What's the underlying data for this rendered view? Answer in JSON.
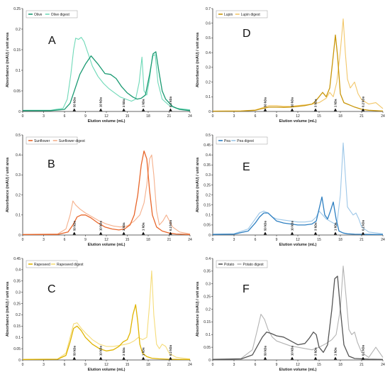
{
  "chart_data": [
    {
      "type": "line",
      "letter": "A",
      "xlabel": "Elution volume (mL)",
      "ylabel": "Absorbance (mAU) / unit area",
      "xlim": [
        0,
        24
      ],
      "ylim": [
        0,
        0.25
      ],
      "x_ticks": [
        "0",
        "3",
        "6",
        "9",
        "12",
        "15",
        "18",
        "21",
        "24"
      ],
      "y_ticks": [
        "0",
        "0.05",
        "0.1",
        "0.15",
        "0.2",
        "0.25"
      ],
      "legend": "top-left",
      "markers": [
        {
          "label": "50 kDa",
          "x": 7.4
        },
        {
          "label": "10 kDa",
          "x": 11.2
        },
        {
          "label": "3 kDa",
          "x": 14.5
        },
        {
          "label": "1 kDa",
          "x": 17.3
        },
        {
          "label": "0.2 kDa",
          "x": 21.2
        }
      ],
      "series": [
        {
          "name": "Olive",
          "color": "#1a9a72",
          "width": 1.3,
          "x": [
            0,
            4,
            6,
            6.8,
            7.5,
            8.2,
            9,
            9.8,
            10.8,
            11.8,
            12.6,
            13.4,
            14.2,
            15,
            15.8,
            16.4,
            17,
            17.6,
            18.2,
            18.7,
            19.1,
            19.5,
            20,
            20.5,
            21.5,
            22.5,
            24
          ],
          "y": [
            0.002,
            0.002,
            0.005,
            0.02,
            0.055,
            0.09,
            0.115,
            0.135,
            0.115,
            0.092,
            0.09,
            0.08,
            0.06,
            0.045,
            0.035,
            0.03,
            0.032,
            0.04,
            0.09,
            0.14,
            0.145,
            0.1,
            0.05,
            0.03,
            0.012,
            0.005,
            0.002
          ]
        },
        {
          "name": "Olive digest",
          "color": "#6fd9b8",
          "width": 1.1,
          "x": [
            0,
            4,
            5.8,
            6.4,
            6.9,
            7.3,
            7.6,
            8,
            8.4,
            8.8,
            9.4,
            10,
            10.8,
            11.6,
            12.4,
            13.2,
            14,
            14.8,
            15.6,
            16.2,
            16.7,
            17.1,
            17.4,
            17.8,
            18.2,
            18.6,
            19,
            19.4,
            20,
            21,
            22,
            24
          ],
          "y": [
            0.003,
            0.003,
            0.008,
            0.03,
            0.09,
            0.15,
            0.178,
            0.175,
            0.18,
            0.17,
            0.14,
            0.11,
            0.085,
            0.068,
            0.055,
            0.045,
            0.035,
            0.03,
            0.025,
            0.03,
            0.07,
            0.132,
            0.05,
            0.04,
            0.08,
            0.135,
            0.138,
            0.07,
            0.03,
            0.015,
            0.008,
            0.004
          ]
        }
      ]
    },
    {
      "type": "line",
      "letter": "D",
      "xlabel": "Elution volume (mL)",
      "ylabel": "Absorbance (mAU) / unit area",
      "xlim": [
        0,
        24
      ],
      "ylim": [
        0,
        0.7
      ],
      "x_ticks": [
        "0",
        "3",
        "6",
        "9",
        "12",
        "15",
        "18",
        "21",
        "24"
      ],
      "y_ticks": [
        "0",
        "0.1",
        "0.2",
        "0.3",
        "0.4",
        "0.5",
        "0.6",
        "0.7"
      ],
      "legend": "top-left",
      "markers": [
        {
          "label": "50 kDa",
          "x": 7.4
        },
        {
          "label": "10 kDa",
          "x": 11.2
        },
        {
          "label": "3 kDa",
          "x": 14.5
        },
        {
          "label": "1 kDa",
          "x": 17.3
        },
        {
          "label": "0.2 kDa",
          "x": 21.2
        }
      ],
      "series": [
        {
          "name": "Lupin",
          "color": "#c9960a",
          "width": 1.3,
          "x": [
            0,
            4,
            6,
            7,
            8,
            9,
            10,
            11,
            12,
            13,
            14,
            14.5,
            15,
            15.5,
            16,
            16.5,
            17,
            17.3,
            17.6,
            18,
            18.5,
            19,
            19.5,
            20,
            21,
            22,
            24
          ],
          "y": [
            0.002,
            0.003,
            0.008,
            0.02,
            0.03,
            0.03,
            0.028,
            0.03,
            0.035,
            0.04,
            0.05,
            0.07,
            0.1,
            0.13,
            0.1,
            0.16,
            0.38,
            0.52,
            0.38,
            0.12,
            0.06,
            0.05,
            0.04,
            0.03,
            0.015,
            0.008,
            0.003
          ]
        },
        {
          "name": "Lupin digest",
          "color": "#f2c76a",
          "width": 1.1,
          "x": [
            0,
            4,
            6,
            7,
            8,
            9,
            10,
            11,
            12,
            13,
            14,
            15,
            16,
            16.5,
            17,
            17.5,
            18,
            18.4,
            18.7,
            19,
            19.4,
            20,
            20.5,
            21,
            22,
            23,
            24
          ],
          "y": [
            0.003,
            0.004,
            0.01,
            0.025,
            0.04,
            0.04,
            0.035,
            0.035,
            0.04,
            0.045,
            0.05,
            0.06,
            0.09,
            0.13,
            0.1,
            0.2,
            0.41,
            0.63,
            0.4,
            0.22,
            0.16,
            0.2,
            0.12,
            0.08,
            0.05,
            0.06,
            0.02
          ]
        }
      ]
    },
    {
      "type": "line",
      "letter": "B",
      "xlabel": "Elution volume (mL)",
      "ylabel": "Absorbance (mAU) / unit area",
      "xlim": [
        0,
        24
      ],
      "ylim": [
        0,
        0.5
      ],
      "x_ticks": [
        "0",
        "3",
        "6",
        "9",
        "12",
        "15",
        "18",
        "21",
        "24"
      ],
      "y_ticks": [
        "0",
        "0.1",
        "0.2",
        "0.3",
        "0.4",
        "0.5"
      ],
      "legend": "top-left",
      "markers": [
        {
          "label": "50 kDa",
          "x": 7.4
        },
        {
          "label": "10 kDa",
          "x": 11.2
        },
        {
          "label": "3 kDa",
          "x": 14.5
        },
        {
          "label": "1 kDa",
          "x": 17.3
        },
        {
          "label": "0.2 kDa",
          "x": 21.2
        }
      ],
      "series": [
        {
          "name": "Sunflower",
          "color": "#e8662a",
          "width": 1.3,
          "x": [
            0,
            5,
            6.5,
            7.2,
            7.8,
            8.4,
            9,
            9.8,
            10.8,
            11.8,
            12.8,
            13.8,
            14.6,
            15.4,
            16,
            16.5,
            17,
            17.4,
            17.8,
            18.2,
            18.6,
            19.2,
            20,
            21,
            22,
            24
          ],
          "y": [
            0.002,
            0.003,
            0.015,
            0.05,
            0.09,
            0.1,
            0.1,
            0.085,
            0.06,
            0.04,
            0.03,
            0.025,
            0.03,
            0.05,
            0.1,
            0.2,
            0.35,
            0.42,
            0.38,
            0.22,
            0.1,
            0.04,
            0.02,
            0.01,
            0.005,
            0.002
          ]
        },
        {
          "name": "Sunflower digest",
          "color": "#f5b08c",
          "width": 1.1,
          "x": [
            0,
            5,
            6.2,
            6.8,
            7.2,
            7.6,
            8.2,
            9,
            10,
            11,
            12,
            13,
            14,
            15,
            16,
            16.8,
            17.4,
            17.8,
            18.2,
            18.5,
            18.8,
            19.2,
            19.6,
            20.1,
            20.6,
            21.5,
            22.5,
            24
          ],
          "y": [
            0.003,
            0.005,
            0.03,
            0.1,
            0.17,
            0.15,
            0.13,
            0.11,
            0.09,
            0.07,
            0.055,
            0.045,
            0.04,
            0.045,
            0.07,
            0.1,
            0.16,
            0.25,
            0.38,
            0.4,
            0.3,
            0.12,
            0.05,
            0.07,
            0.1,
            0.04,
            0.015,
            0.005
          ]
        }
      ]
    },
    {
      "type": "line",
      "letter": "E",
      "xlabel": "Elution volume (mL)",
      "ylabel": "Absorbance (mAU) / unit area",
      "xlim": [
        0,
        24
      ],
      "ylim": [
        0,
        0.5
      ],
      "x_ticks": [
        "0",
        "3",
        "6",
        "9",
        "12",
        "15",
        "18",
        "21",
        "24"
      ],
      "y_ticks": [
        "0",
        "0.05",
        "0.1",
        "0.15",
        "0.2",
        "0.25",
        "0.3",
        "0.35",
        "0.4",
        "0.45",
        "0.5"
      ],
      "legend": "top-left",
      "markers": [
        {
          "label": "50 kDa",
          "x": 7.4
        },
        {
          "label": "10 kDa",
          "x": 11.2
        },
        {
          "label": "3 kDa",
          "x": 14.5
        },
        {
          "label": "1 kDa",
          "x": 17.3
        },
        {
          "label": "0.2 kDa",
          "x": 21.2
        }
      ],
      "series": [
        {
          "name": "Pea",
          "color": "#2d7fc1",
          "width": 1.3,
          "x": [
            0,
            3,
            5,
            6,
            6.6,
            7.2,
            7.8,
            8.4,
            9,
            10,
            11,
            12,
            13,
            14,
            14.6,
            15,
            15.4,
            15.8,
            16.2,
            16.6,
            17,
            17.4,
            17.8,
            18.4,
            19,
            20,
            22,
            24
          ],
          "y": [
            0.003,
            0.004,
            0.02,
            0.06,
            0.09,
            0.11,
            0.11,
            0.09,
            0.07,
            0.06,
            0.055,
            0.05,
            0.05,
            0.055,
            0.07,
            0.13,
            0.19,
            0.1,
            0.08,
            0.12,
            0.165,
            0.08,
            0.02,
            0.01,
            0.006,
            0.004,
            0.003,
            0.002
          ]
        },
        {
          "name": "Pea digest",
          "color": "#9dc7e8",
          "width": 1.1,
          "x": [
            0,
            3,
            5,
            6,
            6.6,
            7.2,
            7.8,
            8.4,
            9,
            10,
            11,
            12,
            13,
            14,
            14.6,
            15,
            15.5,
            16,
            16.5,
            17,
            17.5,
            18,
            18.4,
            18.7,
            19,
            19.4,
            19.8,
            20.2,
            20.6,
            21,
            22,
            24
          ],
          "y": [
            0.004,
            0.006,
            0.03,
            0.08,
            0.11,
            0.12,
            0.11,
            0.09,
            0.08,
            0.075,
            0.07,
            0.065,
            0.065,
            0.07,
            0.09,
            0.12,
            0.1,
            0.08,
            0.07,
            0.06,
            0.05,
            0.2,
            0.46,
            0.3,
            0.14,
            0.12,
            0.1,
            0.11,
            0.08,
            0.04,
            0.015,
            0.006
          ]
        }
      ]
    },
    {
      "type": "line",
      "letter": "C",
      "xlabel": "Elution volume (mL)",
      "ylabel": "Absorbance (mAU) / unit area",
      "xlim": [
        0,
        24
      ],
      "ylim": [
        0,
        0.45
      ],
      "x_ticks": [
        "0",
        "3",
        "6",
        "9",
        "12",
        "15",
        "18",
        "21",
        "24"
      ],
      "y_ticks": [
        "0",
        "0.05",
        "0.1",
        "0.15",
        "0.2",
        "0.25",
        "0.3",
        "0.35",
        "0.4",
        "0.45"
      ],
      "legend": "top-left",
      "markers": [
        {
          "label": "50 kDa",
          "x": 7.4
        },
        {
          "label": "10 kDa",
          "x": 11.2
        },
        {
          "label": "3 kDa",
          "x": 14.5
        },
        {
          "label": "1 kDa",
          "x": 17.3
        },
        {
          "label": "0.2 kDa",
          "x": 21.2
        }
      ],
      "series": [
        {
          "name": "Rapeseed",
          "color": "#e0b400",
          "width": 1.3,
          "x": [
            0,
            5,
            6.2,
            6.8,
            7.3,
            7.8,
            8.4,
            9,
            10,
            11,
            12,
            13,
            13.8,
            14.4,
            15,
            15.4,
            15.8,
            16.2,
            16.5,
            16.8,
            17.2,
            17.8,
            18.5,
            19.5,
            21,
            24
          ],
          "y": [
            0.002,
            0.003,
            0.02,
            0.08,
            0.14,
            0.15,
            0.13,
            0.1,
            0.07,
            0.05,
            0.04,
            0.045,
            0.06,
            0.08,
            0.09,
            0.12,
            0.2,
            0.245,
            0.17,
            0.07,
            0.03,
            0.015,
            0.008,
            0.005,
            0.003,
            0.002
          ]
        },
        {
          "name": "Rapeseed digest",
          "color": "#f5dc7a",
          "width": 1.1,
          "x": [
            0,
            5,
            6.2,
            6.8,
            7.3,
            7.8,
            8.4,
            9,
            10,
            11,
            12,
            13,
            14,
            14.8,
            15.4,
            16,
            16.6,
            17.2,
            17.8,
            18.2,
            18.5,
            18.8,
            19.2,
            19.6,
            20,
            20.5,
            21,
            22,
            24
          ],
          "y": [
            0.003,
            0.004,
            0.03,
            0.1,
            0.16,
            0.165,
            0.14,
            0.12,
            0.09,
            0.07,
            0.06,
            0.06,
            0.065,
            0.07,
            0.075,
            0.085,
            0.1,
            0.09,
            0.1,
            0.25,
            0.395,
            0.2,
            0.07,
            0.05,
            0.07,
            0.06,
            0.03,
            0.012,
            0.004
          ]
        }
      ]
    },
    {
      "type": "line",
      "letter": "F",
      "xlabel": "Elution volume (mL)",
      "ylabel": "Absorbance (mAU) / unit area",
      "xlim": [
        0,
        24
      ],
      "ylim": [
        0,
        0.4
      ],
      "x_ticks": [
        "0",
        "3",
        "6",
        "9",
        "12",
        "15",
        "18",
        "21",
        "24"
      ],
      "y_ticks": [
        "0",
        "0.05",
        "0.1",
        "0.15",
        "0.2",
        "0.25",
        "0.3",
        "0.35",
        "0.4"
      ],
      "legend": "top-left",
      "markers": [
        {
          "label": "50 kDa",
          "x": 7.4
        },
        {
          "label": "10 kDa",
          "x": 11.2
        },
        {
          "label": "3 kDa",
          "x": 14.5
        },
        {
          "label": "1 kDa",
          "x": 17.3
        },
        {
          "label": "0.2 kDa",
          "x": 21.2
        }
      ],
      "series": [
        {
          "name": "Potato",
          "color": "#555555",
          "width": 1.3,
          "x": [
            0,
            4,
            5.6,
            6.4,
            7,
            7.6,
            8.2,
            9,
            10,
            11,
            12,
            13,
            13.6,
            14.2,
            14.6,
            15,
            15.6,
            16.2,
            16.8,
            17.2,
            17.6,
            18,
            18.5,
            19.2,
            20,
            22,
            24
          ],
          "y": [
            0.002,
            0.004,
            0.02,
            0.06,
            0.09,
            0.11,
            0.105,
            0.095,
            0.09,
            0.075,
            0.06,
            0.065,
            0.085,
            0.11,
            0.1,
            0.05,
            0.03,
            0.06,
            0.2,
            0.32,
            0.33,
            0.2,
            0.06,
            0.015,
            0.006,
            0.003,
            0.002
          ]
        },
        {
          "name": "Potato digest",
          "color": "#b3b3b3",
          "width": 1.1,
          "x": [
            0,
            4,
            5.6,
            6.3,
            6.8,
            7.3,
            7.8,
            8.4,
            9,
            10,
            11,
            12,
            13,
            14,
            15,
            16,
            16.8,
            17.4,
            18,
            18.4,
            18.8,
            19.2,
            19.6,
            20,
            20.4,
            21,
            22,
            23,
            24
          ],
          "y": [
            0.003,
            0.006,
            0.04,
            0.12,
            0.18,
            0.16,
            0.12,
            0.09,
            0.075,
            0.065,
            0.055,
            0.05,
            0.045,
            0.04,
            0.05,
            0.065,
            0.08,
            0.1,
            0.2,
            0.37,
            0.25,
            0.12,
            0.1,
            0.11,
            0.07,
            0.03,
            0.01,
            0.05,
            0.01
          ]
        }
      ]
    }
  ]
}
